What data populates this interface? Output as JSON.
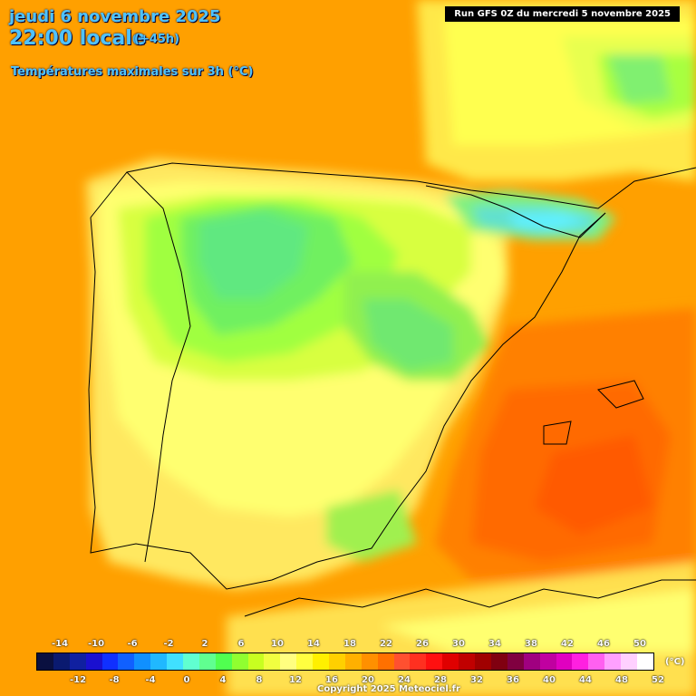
{
  "header": {
    "date": "jeudi 6 novembre 2025",
    "time": "22:00 locale",
    "offset": "(+45h)",
    "variable": "Températures maximales sur 3h (°C)",
    "run": "Run GFS 0Z du mercredi 5 novembre 2025"
  },
  "legend": {
    "unit": "(°C)",
    "top_labels": [
      "-14",
      "-10",
      "-6",
      "-2",
      "2",
      "6",
      "10",
      "14",
      "18",
      "22",
      "26",
      "30",
      "34",
      "38",
      "42",
      "46",
      "50"
    ],
    "bottom_labels": [
      "-12",
      "-8",
      "-4",
      "0",
      "4",
      "8",
      "12",
      "16",
      "20",
      "24",
      "28",
      "32",
      "36",
      "40",
      "44",
      "48",
      "52"
    ],
    "colors": [
      "#0a1040",
      "#0a1a70",
      "#1020a0",
      "#1a10d0",
      "#1030ff",
      "#1060ff",
      "#1090ff",
      "#20b8ff",
      "#40e0ff",
      "#60ffd0",
      "#60ff90",
      "#50ff50",
      "#90ff30",
      "#c8ff20",
      "#f0ff40",
      "#ffff80",
      "#ffff40",
      "#fff000",
      "#ffd000",
      "#ffb000",
      "#ff9000",
      "#ff7000",
      "#ff5030",
      "#ff3020",
      "#ff1010",
      "#e00000",
      "#c00000",
      "#a00000",
      "#800010",
      "#800040",
      "#a00080",
      "#c000a0",
      "#e000c0",
      "#ff20e0",
      "#ff60f0",
      "#ffa0ff",
      "#ffd0ff",
      "#ffffff"
    ]
  },
  "copyright": "Copyright 2025 Meteociel.fr"
}
